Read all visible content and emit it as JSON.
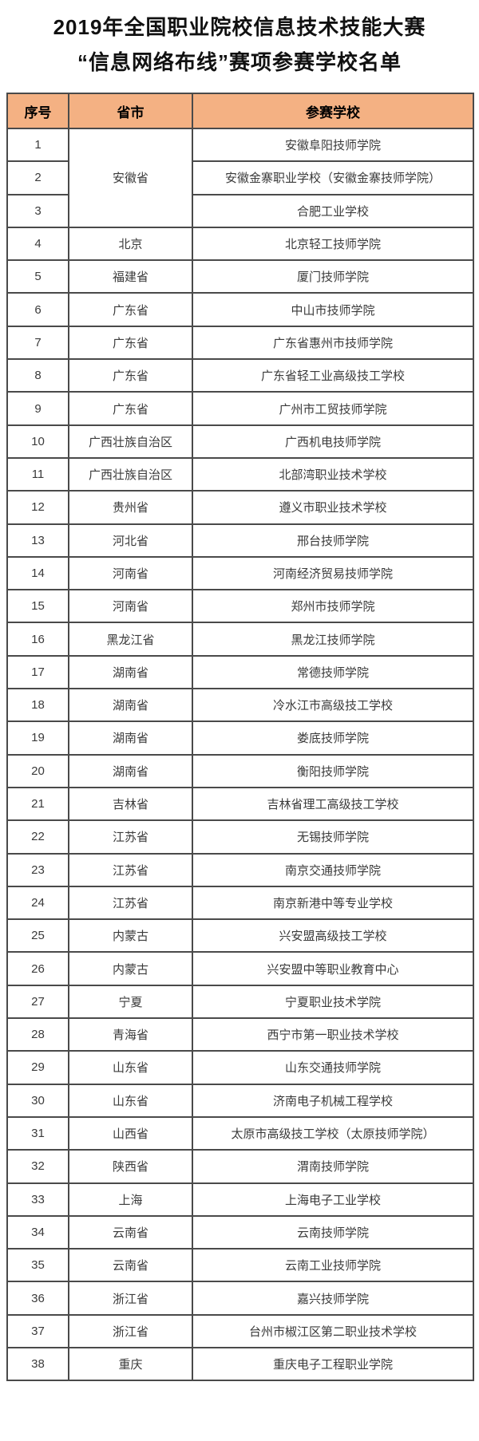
{
  "title": {
    "line1": "2019年全国职业院校信息技术技能大赛",
    "line2": "“信息网络布线”赛项参赛学校名单"
  },
  "colors": {
    "header_bg": "#F4B183",
    "border": "#4a4a4a",
    "cell_text": "#3a3a3a"
  },
  "table": {
    "headers": [
      "序号",
      "省市",
      "参赛学校"
    ],
    "rows": [
      {
        "no": "1",
        "province": "安徽省",
        "rowspan": 3,
        "school": "安徽阜阳技师学院"
      },
      {
        "no": "2",
        "province": null,
        "school": "安徽金寨职业学校（安徽金寨技师学院）"
      },
      {
        "no": "3",
        "province": null,
        "school": "合肥工业学校"
      },
      {
        "no": "4",
        "province": "北京",
        "school": "北京轻工技师学院"
      },
      {
        "no": "5",
        "province": "福建省",
        "school": "厦门技师学院"
      },
      {
        "no": "6",
        "province": "广东省",
        "school": "中山市技师学院"
      },
      {
        "no": "7",
        "province": "广东省",
        "school": "广东省惠州市技师学院"
      },
      {
        "no": "8",
        "province": "广东省",
        "school": "广东省轻工业高级技工学校"
      },
      {
        "no": "9",
        "province": "广东省",
        "school": "广州市工贸技师学院"
      },
      {
        "no": "10",
        "province": "广西壮族自治区",
        "school": "广西机电技师学院"
      },
      {
        "no": "11",
        "province": "广西壮族自治区",
        "school": "北部湾职业技术学校"
      },
      {
        "no": "12",
        "province": "贵州省",
        "school": "遵义市职业技术学校"
      },
      {
        "no": "13",
        "province": "河北省",
        "school": "邢台技师学院"
      },
      {
        "no": "14",
        "province": "河南省",
        "school": "河南经济贸易技师学院"
      },
      {
        "no": "15",
        "province": "河南省",
        "school": "郑州市技师学院"
      },
      {
        "no": "16",
        "province": "黑龙江省",
        "school": "黑龙江技师学院"
      },
      {
        "no": "17",
        "province": "湖南省",
        "school": "常德技师学院"
      },
      {
        "no": "18",
        "province": "湖南省",
        "school": "冷水江市高级技工学校"
      },
      {
        "no": "19",
        "province": "湖南省",
        "school": "娄底技师学院"
      },
      {
        "no": "20",
        "province": "湖南省",
        "school": "衡阳技师学院"
      },
      {
        "no": "21",
        "province": "吉林省",
        "school": "吉林省理工高级技工学校"
      },
      {
        "no": "22",
        "province": "江苏省",
        "school": "无锡技师学院"
      },
      {
        "no": "23",
        "province": "江苏省",
        "school": "南京交通技师学院"
      },
      {
        "no": "24",
        "province": "江苏省",
        "school": "南京新港中等专业学校"
      },
      {
        "no": "25",
        "province": "内蒙古",
        "school": "兴安盟高级技工学校"
      },
      {
        "no": "26",
        "province": "内蒙古",
        "school": "兴安盟中等职业教育中心"
      },
      {
        "no": "27",
        "province": "宁夏",
        "school": "宁夏职业技术学院"
      },
      {
        "no": "28",
        "province": "青海省",
        "school": "西宁市第一职业技术学校"
      },
      {
        "no": "29",
        "province": "山东省",
        "school": "山东交通技师学院"
      },
      {
        "no": "30",
        "province": "山东省",
        "school": "济南电子机械工程学校"
      },
      {
        "no": "31",
        "province": "山西省",
        "school": "太原市高级技工学校（太原技师学院）"
      },
      {
        "no": "32",
        "province": "陕西省",
        "school": "渭南技师学院"
      },
      {
        "no": "33",
        "province": "上海",
        "school": "上海电子工业学校"
      },
      {
        "no": "34",
        "province": "云南省",
        "school": "云南技师学院"
      },
      {
        "no": "35",
        "province": "云南省",
        "school": "云南工业技师学院"
      },
      {
        "no": "36",
        "province": "浙江省",
        "school": "嘉兴技师学院"
      },
      {
        "no": "37",
        "province": "浙江省",
        "school": "台州市椒江区第二职业技术学校"
      },
      {
        "no": "38",
        "province": "重庆",
        "school": "重庆电子工程职业学院"
      }
    ]
  }
}
